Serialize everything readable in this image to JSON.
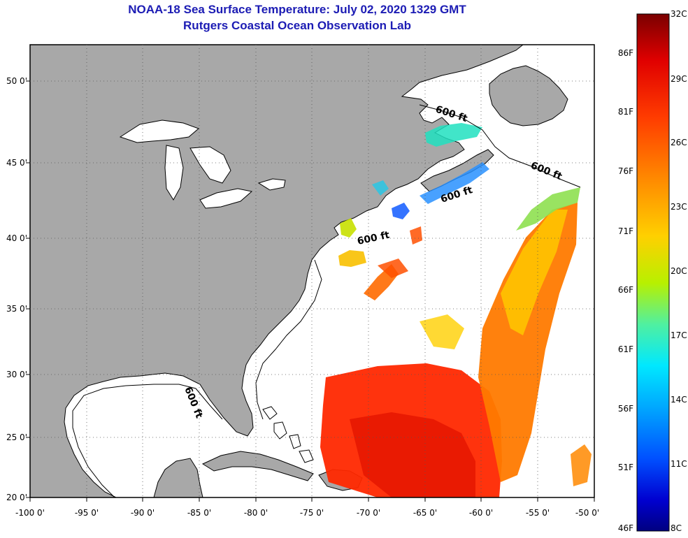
{
  "title": "NOAA-18 Sea Surface Temperature:  July 02, 2020 1329 GMT",
  "subtitle": "Rutgers Coastal Ocean Observation Lab",
  "lon_labels": [
    "-100 0'",
    "-95 0'",
    "-90 0'",
    "-85 0'",
    "-80 0'",
    "-75 0'",
    "-70 0'",
    "-65 0'",
    "-60 0'",
    "-55 0'",
    "-50 0'"
  ],
  "lat_labels": [
    "50 0'",
    "45 0'",
    "40 0'",
    "35 0'",
    "30 0'",
    "25 0'",
    "20 0'"
  ],
  "isobath_label": "600 ft",
  "colorbar": {
    "c_labels": [
      "32C",
      "29C",
      "26C",
      "23C",
      "20C",
      "17C",
      "14C",
      "11C",
      "8C"
    ],
    "f_labels": [
      "86F",
      "81F",
      "76F",
      "71F",
      "66F",
      "61F",
      "56F",
      "51F",
      "46F"
    ],
    "stops": [
      "#7a0000",
      "#e00000",
      "#ff3c00",
      "#ff8a00",
      "#ffd000",
      "#b8f000",
      "#50f0a0",
      "#00e8ff",
      "#00a8ff",
      "#0050ff",
      "#0000d0",
      "#000080"
    ]
  },
  "colors": {
    "land": "#a8a8a8",
    "title": "#1c1cb4",
    "grid": "#555555"
  }
}
